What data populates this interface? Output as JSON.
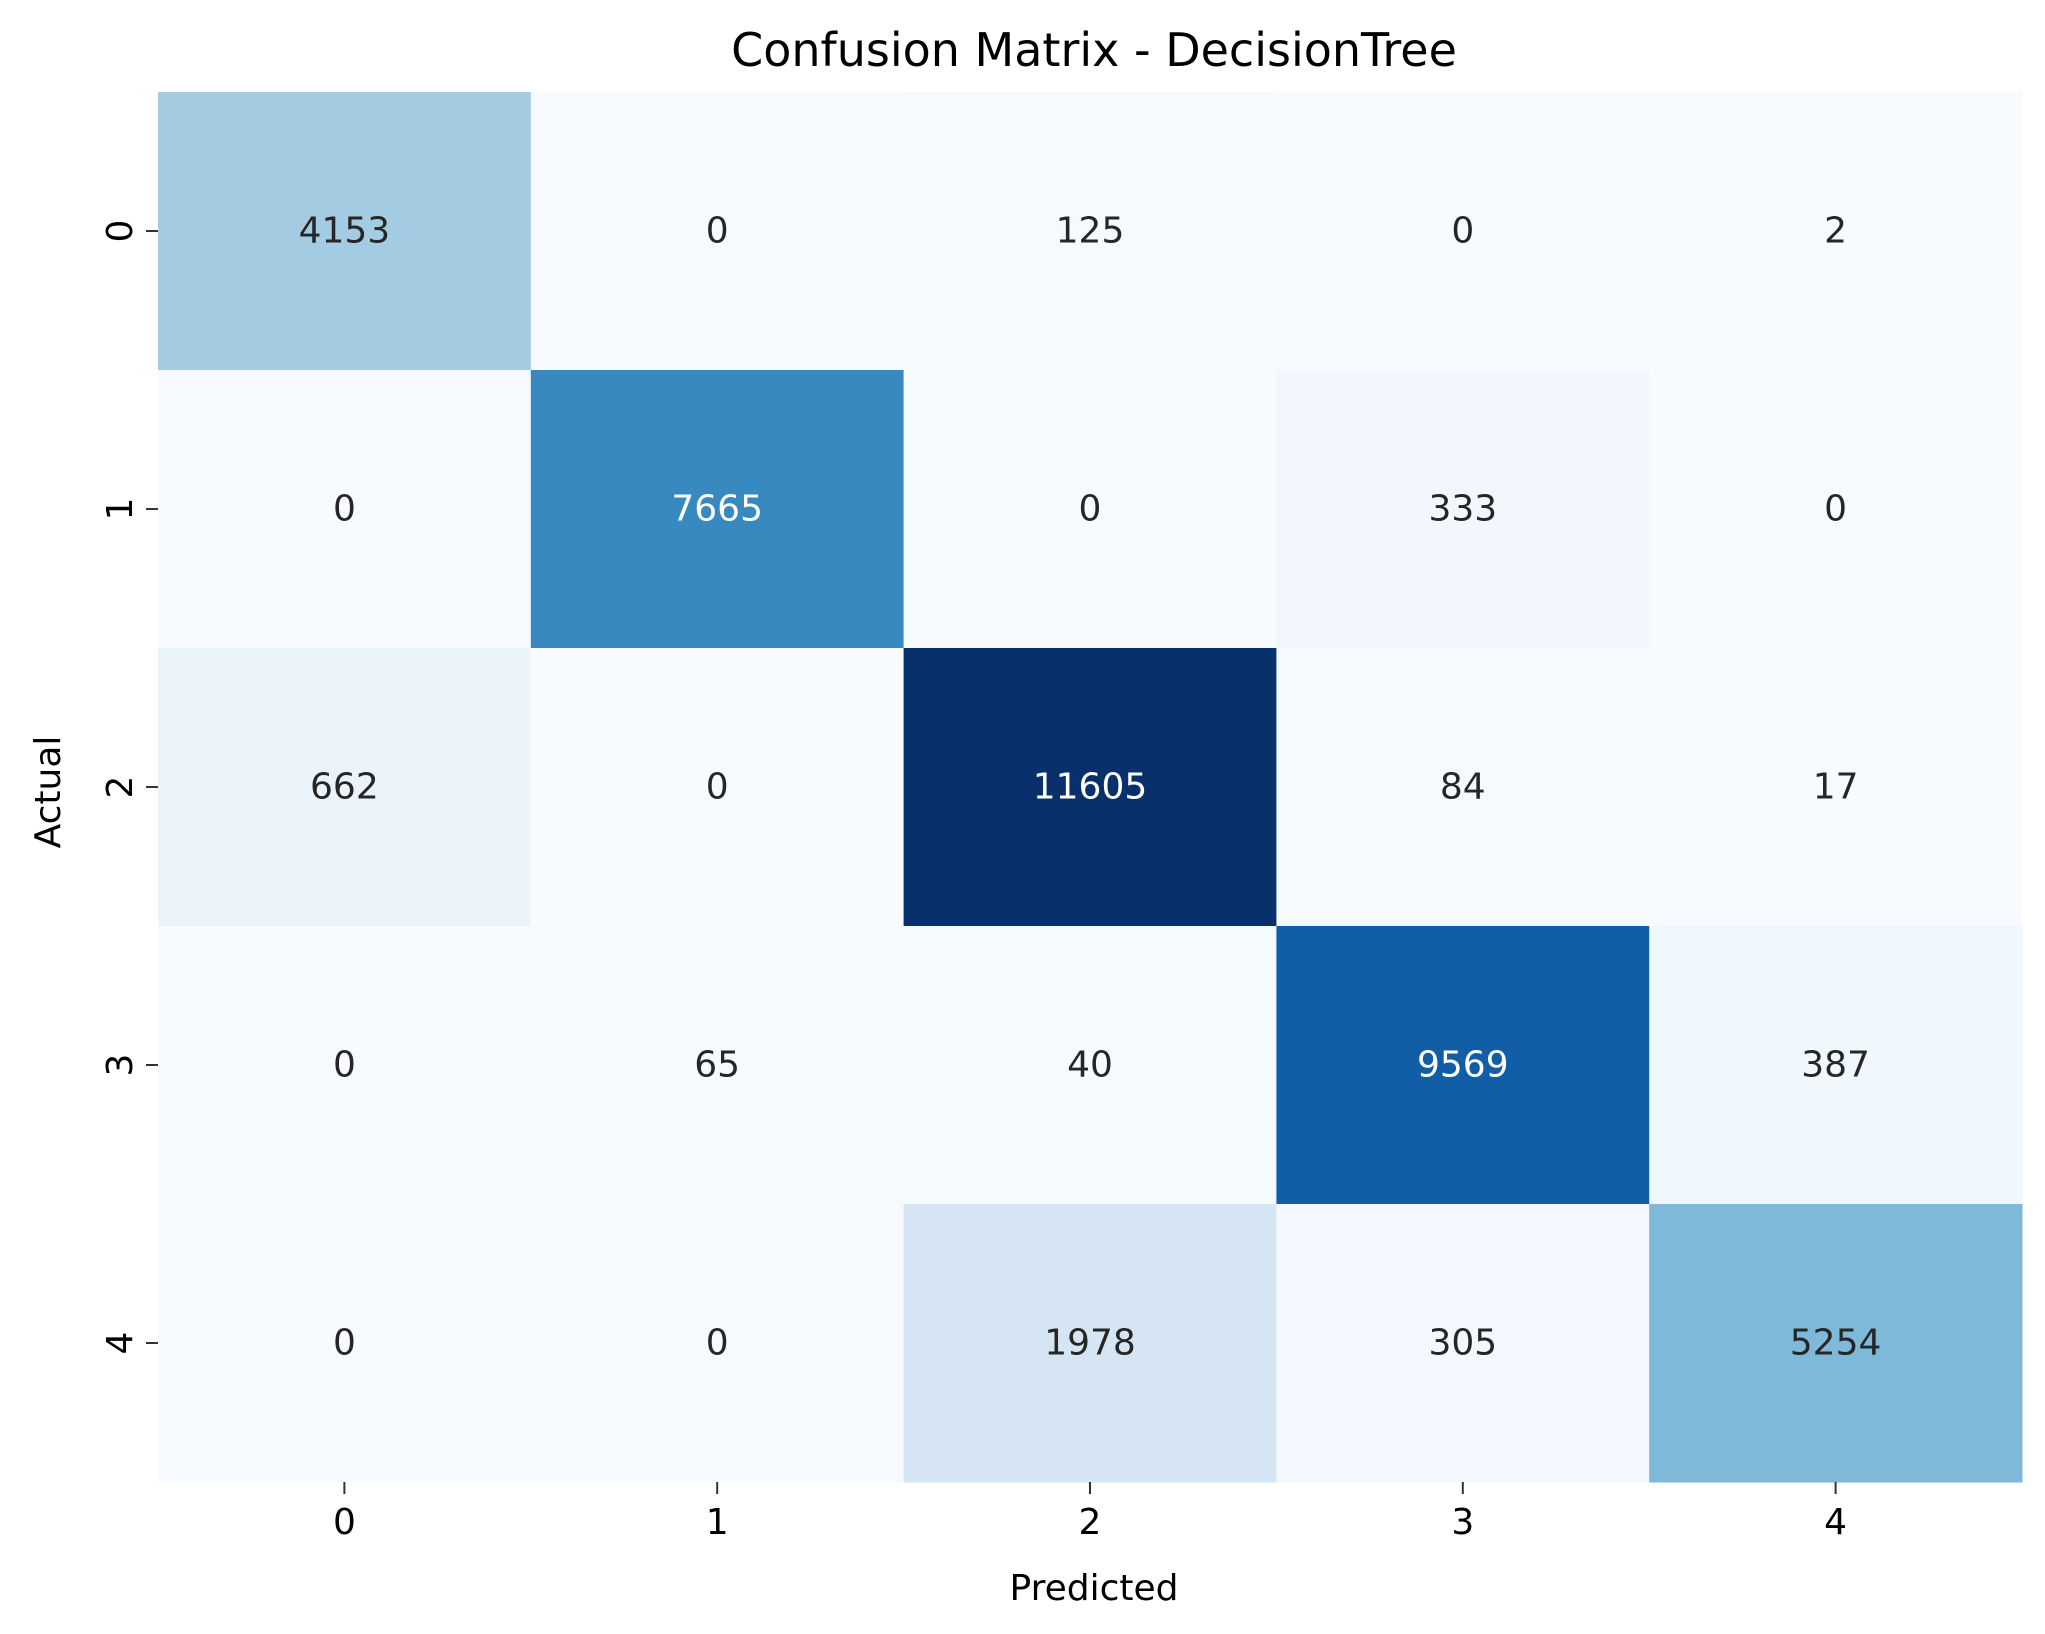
{
  "chart_data": {
    "type": "heatmap",
    "title": "Confusion Matrix - DecisionTree",
    "xlabel": "Predicted",
    "ylabel": "Actual",
    "x_categories": [
      "0",
      "1",
      "2",
      "3",
      "4"
    ],
    "y_categories": [
      "0",
      "1",
      "2",
      "3",
      "4"
    ],
    "values": [
      [
        4153,
        0,
        125,
        0,
        2
      ],
      [
        0,
        7665,
        0,
        333,
        0
      ],
      [
        662,
        0,
        11605,
        84,
        17
      ],
      [
        0,
        65,
        40,
        9569,
        387
      ],
      [
        0,
        0,
        1978,
        305,
        5254
      ]
    ],
    "colormap": "Blues",
    "color_range": [
      0,
      11605
    ],
    "colorbar": false,
    "annotations": true
  }
}
